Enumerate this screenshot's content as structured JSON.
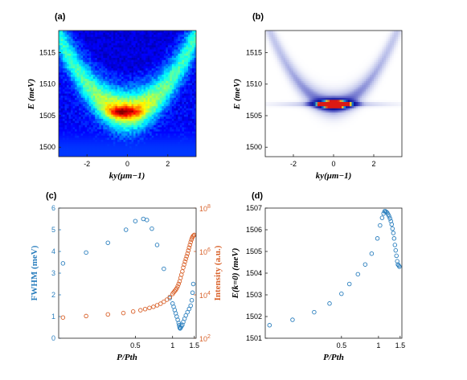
{
  "panels": {
    "a": {
      "label": "(a)"
    },
    "b": {
      "label": "(b)"
    },
    "c": {
      "label": "(c)"
    },
    "d": {
      "label": "(d)"
    }
  },
  "chart_data": [
    {
      "id": "a",
      "type": "heatmap",
      "ylabel": "E (meV)",
      "xlabel": "ky(μm−1)",
      "xlim": [
        -3.4,
        3.4
      ],
      "ylim": [
        1498.5,
        1518.5
      ],
      "xticks": [
        -2,
        0,
        2
      ],
      "yticks": [
        1500,
        1505,
        1510,
        1515
      ],
      "colormap": "jet",
      "dispersion": {
        "E0": 1505.7,
        "curvature_meV_per_um2": 1.05,
        "peak_at": [
          -0.2,
          1505.6
        ]
      }
    },
    {
      "id": "b",
      "type": "heatmap",
      "ylabel": "E (meV)",
      "xlabel": "ky(μm−1)",
      "xlim": [
        -3.4,
        3.4
      ],
      "ylim": [
        1498.5,
        1518.5
      ],
      "xticks": [
        -2,
        0,
        2
      ],
      "yticks": [
        1500,
        1505,
        1510,
        1515
      ],
      "colormap": "white-blue-red",
      "dispersion": {
        "E0": 1506.8,
        "curvature_meV_per_um2": 1.15,
        "peak_at": [
          0.1,
          1506.8
        ]
      }
    },
    {
      "id": "c",
      "type": "scatter",
      "xlabel": "P/Pth",
      "ylabel": "FWHM (meV)",
      "ylabel_right": "Intensity (a.u.)",
      "xscale": "log",
      "xlim": [
        0.12,
        1.55
      ],
      "xticks": [
        0.5,
        1,
        1.5
      ],
      "ylim": [
        0,
        6
      ],
      "yticks": [
        0,
        1,
        2,
        3,
        4,
        5,
        6
      ],
      "ylim_right": [
        100,
        100000000
      ],
      "yticks_right": [
        100,
        10000,
        1000000,
        100000000
      ],
      "yticks_right_labels": [
        "10",
        "10",
        "10",
        "10"
      ],
      "yticks_right_exp": [
        "2",
        "4",
        "6",
        "8"
      ],
      "colors": {
        "fwhm": "#2b7fbe",
        "intensity": "#d9622b"
      },
      "series": [
        {
          "axis": "left",
          "x": [
            0.13,
            0.2,
            0.3,
            0.42,
            0.5,
            0.58,
            0.62,
            0.68,
            0.75,
            0.85,
            0.95,
            1.0,
            1.02,
            1.04,
            1.06,
            1.08,
            1.1,
            1.12,
            1.13,
            1.14,
            1.15,
            1.16,
            1.18,
            1.2,
            1.22,
            1.25,
            1.28,
            1.32,
            1.36,
            1.4,
            1.43,
            1.45,
            1.47
          ],
          "y": [
            3.45,
            3.95,
            4.4,
            5.0,
            5.4,
            5.5,
            5.45,
            5.05,
            4.3,
            3.2,
            1.85,
            1.6,
            1.45,
            1.3,
            1.15,
            1.0,
            0.85,
            0.7,
            0.6,
            0.5,
            0.45,
            0.48,
            0.55,
            0.62,
            0.75,
            0.9,
            1.05,
            1.2,
            1.35,
            1.5,
            1.75,
            2.1,
            2.5
          ]
        },
        {
          "axis": "right",
          "x": [
            0.13,
            0.2,
            0.3,
            0.4,
            0.48,
            0.55,
            0.6,
            0.65,
            0.7,
            0.75,
            0.8,
            0.85,
            0.9,
            0.95,
            1.0,
            1.02,
            1.04,
            1.06,
            1.08,
            1.1,
            1.12,
            1.14,
            1.16,
            1.18,
            1.2,
            1.22,
            1.24,
            1.26,
            1.28,
            1.3,
            1.32,
            1.34,
            1.36,
            1.38,
            1.4,
            1.42,
            1.44,
            1.46,
            1.48,
            1.5
          ],
          "y": [
            900,
            1050,
            1250,
            1450,
            1700,
            1950,
            2200,
            2500,
            2800,
            3300,
            3900,
            4800,
            6000,
            8000,
            11000,
            13000,
            15000,
            17000,
            20000,
            25000,
            32000,
            42000,
            60000,
            85000,
            120000,
            180000,
            250000,
            340000,
            450000,
            600000,
            800000,
            1100000,
            1500000,
            2000000,
            2700000,
            3500000,
            4300000,
            5000000,
            5500000,
            5800000
          ]
        }
      ]
    },
    {
      "id": "d",
      "type": "scatter",
      "xlabel": "P/Pth",
      "ylabel": "E(k=0) (meV)",
      "xscale": "log",
      "xlim": [
        0.12,
        1.55
      ],
      "xticks": [
        0.5,
        1,
        1.5
      ],
      "ylim": [
        1501,
        1507
      ],
      "yticks": [
        1501,
        1502,
        1503,
        1504,
        1505,
        1506,
        1507
      ],
      "colors": {
        "points": "#2b7fbe"
      },
      "series": [
        {
          "x": [
            0.13,
            0.2,
            0.3,
            0.4,
            0.5,
            0.58,
            0.68,
            0.78,
            0.88,
            0.98,
            1.03,
            1.07,
            1.1,
            1.12,
            1.14,
            1.16,
            1.18,
            1.2,
            1.22,
            1.24,
            1.26,
            1.28,
            1.3,
            1.32,
            1.34,
            1.36,
            1.38,
            1.4,
            1.42,
            1.44,
            1.46,
            1.48
          ],
          "y": [
            1501.6,
            1501.85,
            1502.2,
            1502.6,
            1503.05,
            1503.5,
            1503.95,
            1504.4,
            1504.9,
            1505.6,
            1506.2,
            1506.55,
            1506.75,
            1506.85,
            1506.85,
            1506.82,
            1506.78,
            1506.7,
            1506.62,
            1506.52,
            1506.4,
            1506.25,
            1506.05,
            1505.85,
            1505.6,
            1505.3,
            1505.05,
            1504.8,
            1504.55,
            1504.4,
            1504.35,
            1504.3
          ]
        }
      ]
    }
  ]
}
